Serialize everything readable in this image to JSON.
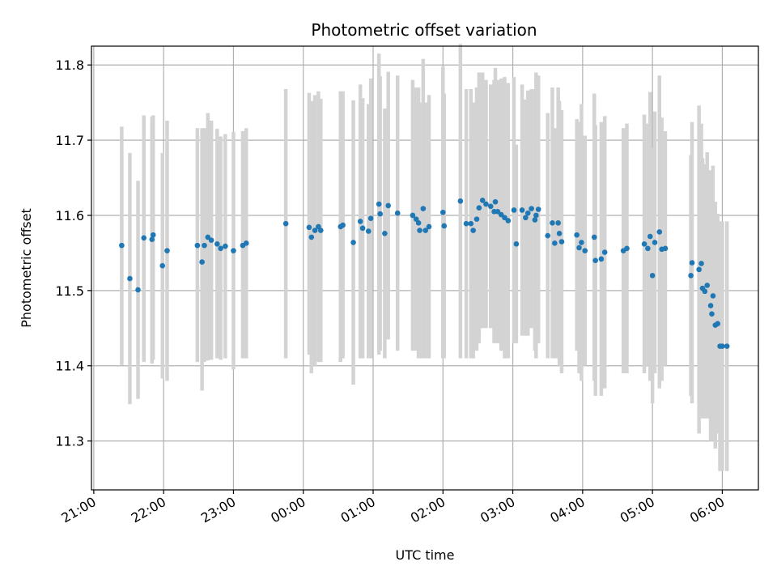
{
  "chart_data": {
    "type": "scatter",
    "title": "Photometric offset variation",
    "xlabel": "UTC time",
    "ylabel": "Photometric offset",
    "x_axis": "time",
    "xlim": [
      "20:58",
      "06:31"
    ],
    "ylim": [
      11.235,
      11.825
    ],
    "x_ticks": [
      "21:00",
      "22:00",
      "23:00",
      "00:00",
      "01:00",
      "02:00",
      "03:00",
      "04:00",
      "05:00",
      "06:00"
    ],
    "y_ticks": [
      11.3,
      11.4,
      11.5,
      11.6,
      11.7,
      11.8
    ],
    "grid": true,
    "colors": {
      "points": "#1f77b4",
      "error_bars": "#d3d3d3",
      "grid": "#b0b0b0"
    },
    "series": [
      {
        "x": [
          "21:24",
          "21:31",
          "21:38",
          "21:43",
          "21:50",
          "21:51",
          "21:59",
          "22:03",
          "22:29",
          "22:33",
          "22:35",
          "22:38",
          "22:41",
          "22:46",
          "22:49",
          "22:53",
          "23:00",
          "23:08",
          "23:11",
          "23:45",
          "00:05",
          "00:07",
          "00:10",
          "00:13",
          "00:15",
          "00:32",
          "00:34",
          "00:43",
          "00:49",
          "00:51",
          "00:56",
          "00:58",
          "01:05",
          "01:06",
          "01:10",
          "01:13",
          "01:21",
          "01:34",
          "01:37",
          "01:39",
          "01:40",
          "01:43",
          "01:45",
          "01:48",
          "02:00",
          "02:01",
          "02:15",
          "02:20",
          "02:24",
          "02:26",
          "02:29",
          "02:31",
          "02:34",
          "02:37",
          "02:41",
          "02:44",
          "02:45",
          "02:47",
          "02:50",
          "02:53",
          "02:56",
          "03:01",
          "03:03",
          "03:08",
          "03:11",
          "03:13",
          "03:16",
          "03:19",
          "03:20",
          "03:22",
          "03:30",
          "03:34",
          "03:36",
          "03:39",
          "03:40",
          "03:42",
          "03:55",
          "03:57",
          "03:59",
          "04:02",
          "04:10",
          "04:11",
          "04:16",
          "04:19",
          "04:35",
          "04:38",
          "04:53",
          "04:56",
          "04:58",
          "05:00",
          "05:02",
          "05:06",
          "05:08",
          "05:11",
          "05:33",
          "05:34",
          "05:40",
          "05:42",
          "05:43",
          "05:45",
          "05:47",
          "05:50",
          "05:51",
          "05:52",
          "05:54",
          "05:56",
          "05:58",
          "06:00",
          "06:04"
        ],
        "y": [
          11.56,
          11.516,
          11.501,
          11.57,
          11.568,
          11.574,
          11.533,
          11.553,
          11.56,
          11.538,
          11.56,
          11.571,
          11.567,
          11.562,
          11.556,
          11.559,
          11.553,
          11.56,
          11.563,
          11.589,
          11.584,
          11.571,
          11.58,
          11.585,
          11.58,
          11.585,
          11.587,
          11.564,
          11.592,
          11.583,
          11.579,
          11.596,
          11.615,
          11.602,
          11.576,
          11.613,
          11.603,
          11.6,
          11.595,
          11.59,
          11.58,
          11.609,
          11.58,
          11.585,
          11.604,
          11.586,
          11.619,
          11.589,
          11.589,
          11.58,
          11.595,
          11.61,
          11.62,
          11.615,
          11.612,
          11.605,
          11.618,
          11.605,
          11.601,
          11.597,
          11.593,
          11.607,
          11.562,
          11.607,
          11.597,
          11.603,
          11.609,
          11.594,
          11.6,
          11.608,
          11.573,
          11.59,
          11.563,
          11.59,
          11.576,
          11.565,
          11.574,
          11.557,
          11.564,
          11.553,
          11.571,
          11.54,
          11.542,
          11.551,
          11.553,
          11.556,
          11.562,
          11.556,
          11.572,
          11.52,
          11.564,
          11.578,
          11.555,
          11.556,
          11.52,
          11.537,
          11.528,
          11.536,
          11.503,
          11.499,
          11.507,
          11.48,
          11.469,
          11.493,
          11.454,
          11.456,
          11.426,
          11.426,
          11.426
        ],
        "y_low": [
          11.401,
          11.349,
          11.356,
          11.405,
          11.403,
          11.408,
          11.383,
          11.38,
          11.405,
          11.367,
          11.405,
          11.407,
          11.408,
          11.41,
          11.408,
          11.41,
          11.395,
          11.41,
          11.41,
          11.41,
          11.415,
          11.39,
          11.4,
          11.405,
          11.405,
          11.405,
          11.41,
          11.375,
          11.41,
          11.41,
          11.41,
          11.41,
          11.415,
          11.42,
          11.41,
          11.435,
          11.42,
          11.42,
          11.42,
          11.41,
          11.41,
          11.41,
          11.41,
          11.41,
          11.41,
          11.41,
          11.41,
          11.41,
          11.41,
          11.41,
          11.42,
          11.43,
          11.45,
          11.45,
          11.45,
          11.43,
          11.44,
          11.43,
          11.42,
          11.41,
          11.41,
          11.43,
          11.43,
          11.44,
          11.44,
          11.44,
          11.45,
          11.42,
          11.41,
          11.43,
          11.41,
          11.41,
          11.41,
          11.41,
          11.4,
          11.39,
          11.42,
          11.39,
          11.38,
          11.4,
          11.38,
          11.36,
          11.36,
          11.37,
          11.39,
          11.39,
          11.39,
          11.4,
          11.38,
          11.35,
          11.39,
          11.37,
          11.38,
          11.4,
          11.36,
          11.35,
          11.31,
          11.35,
          11.33,
          11.33,
          11.33,
          11.3,
          11.3,
          11.32,
          11.29,
          11.31,
          11.26,
          11.26,
          11.26
        ],
        "y_high": [
          11.718,
          11.683,
          11.646,
          11.733,
          11.731,
          11.733,
          11.683,
          11.726,
          11.716,
          11.716,
          11.716,
          11.736,
          11.726,
          11.715,
          11.705,
          11.708,
          11.711,
          11.712,
          11.716,
          11.768,
          11.763,
          11.752,
          11.76,
          11.765,
          11.755,
          11.765,
          11.765,
          11.753,
          11.774,
          11.756,
          11.748,
          11.782,
          11.815,
          11.785,
          11.742,
          11.791,
          11.786,
          11.78,
          11.77,
          11.77,
          11.75,
          11.808,
          11.75,
          11.76,
          11.798,
          11.762,
          11.828,
          11.768,
          11.768,
          11.75,
          11.77,
          11.79,
          11.79,
          11.78,
          11.774,
          11.78,
          11.796,
          11.78,
          11.782,
          11.784,
          11.776,
          11.784,
          11.694,
          11.774,
          11.754,
          11.766,
          11.768,
          11.768,
          11.79,
          11.786,
          11.736,
          11.77,
          11.716,
          11.77,
          11.752,
          11.74,
          11.728,
          11.724,
          11.748,
          11.706,
          11.762,
          11.72,
          11.724,
          11.732,
          11.716,
          11.722,
          11.734,
          11.722,
          11.764,
          11.69,
          11.738,
          11.786,
          11.73,
          11.712,
          11.68,
          11.724,
          11.746,
          11.722,
          11.676,
          11.668,
          11.684,
          11.66,
          11.638,
          11.666,
          11.618,
          11.602,
          11.592,
          11.592,
          11.592
        ]
      }
    ]
  }
}
